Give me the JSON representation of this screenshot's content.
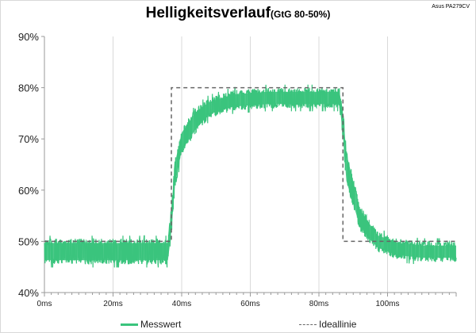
{
  "corner_label": "Asus PA279CV",
  "chart_data": {
    "type": "line",
    "title": "Helligkeitsverlauf",
    "subtitle": "(GtG 80-50%)",
    "xlabel": "",
    "ylabel": "",
    "xlim": [
      0,
      120
    ],
    "ylim": [
      40,
      90
    ],
    "x_ticks": [
      0,
      20,
      40,
      60,
      80,
      100
    ],
    "x_tick_labels": [
      "0ms",
      "20ms",
      "40ms",
      "60ms",
      "80ms",
      "100ms"
    ],
    "y_ticks": [
      40,
      50,
      60,
      70,
      80,
      90
    ],
    "y_tick_labels": [
      "40%",
      "50%",
      "60%",
      "70%",
      "80%",
      "90%"
    ],
    "grid": "vertical",
    "legend_position": "bottom",
    "colors": {
      "measured": "#3ac47d",
      "ideal": "#666666"
    },
    "series": [
      {
        "name": "Messwert",
        "style": "noisy-band",
        "x": [
          0,
          36,
          37,
          38,
          40,
          44,
          48,
          55,
          65,
          75,
          86,
          87,
          88,
          92,
          97,
          103,
          110,
          120
        ],
        "y_upper": [
          50.5,
          50.5,
          57,
          66,
          72,
          76,
          78,
          79.5,
          80,
          80,
          80,
          76,
          68,
          57,
          52,
          50.5,
          50,
          50
        ],
        "y_lower": [
          45.5,
          45.5,
          51,
          60,
          67,
          71,
          74,
          75.5,
          76,
          76,
          76,
          70,
          61,
          52,
          48,
          46.5,
          46,
          46
        ]
      },
      {
        "name": "Ideallinie",
        "style": "dashed",
        "x": [
          0,
          37,
          37,
          87,
          87,
          120
        ],
        "y": [
          50,
          50,
          80,
          80,
          50,
          50
        ]
      }
    ]
  }
}
